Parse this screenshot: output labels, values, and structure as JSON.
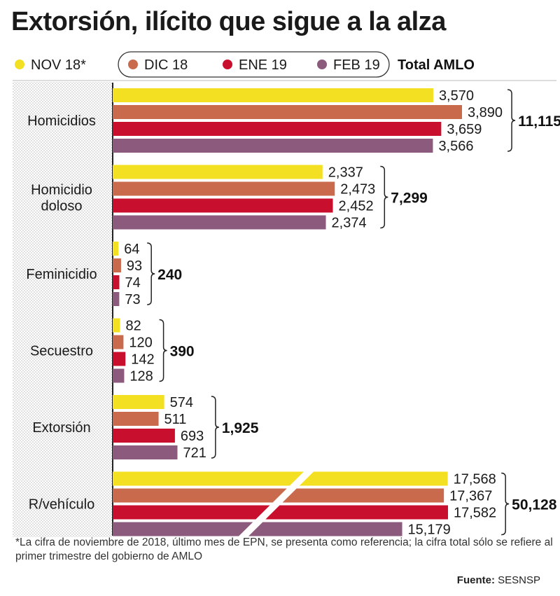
{
  "title": "Extorsión, ilícito que sigue a la alza",
  "legend": {
    "series": [
      {
        "label": "NOV 18*",
        "color": "#f4e022"
      },
      {
        "label": "DIC 18",
        "color": "#c96a4d"
      },
      {
        "label": "ENE 19",
        "color": "#c8102e"
      },
      {
        "label": "FEB 19",
        "color": "#8b5a7c"
      }
    ],
    "total_label": "Total AMLO"
  },
  "chart_data": {
    "type": "bar",
    "orientation": "horizontal",
    "title": "Extorsión, ilícito que sigue a la alza",
    "categories": [
      "Homicidios",
      "Homicidio doloso",
      "Feminicidio",
      "Secuestro",
      "Extorsión",
      "R/vehículo"
    ],
    "series": [
      {
        "name": "NOV 18*",
        "values": [
          3570,
          2337,
          64,
          82,
          574,
          17568
        ]
      },
      {
        "name": "DIC 18",
        "values": [
          3890,
          2473,
          93,
          120,
          511,
          17367
        ]
      },
      {
        "name": "ENE 19",
        "values": [
          3659,
          2452,
          74,
          142,
          693,
          17582
        ]
      },
      {
        "name": "FEB 19",
        "values": [
          3566,
          2374,
          73,
          128,
          721,
          15179
        ]
      }
    ],
    "value_labels": [
      [
        "3,570",
        "3,890",
        "3,659",
        "3,566"
      ],
      [
        "2,337",
        "2,473",
        "2,452",
        "2,374"
      ],
      [
        "64",
        "93",
        "74",
        "73"
      ],
      [
        "82",
        "120",
        "142",
        "128"
      ],
      [
        "574",
        "511",
        "693",
        "721"
      ],
      [
        "17,568",
        "17,367",
        "17,582",
        "15,179"
      ]
    ],
    "totals": [
      "11,115",
      "7,299",
      "240",
      "390",
      "1,925",
      "50,128"
    ],
    "total_values": [
      11115,
      7299,
      240,
      390,
      1925,
      50128
    ],
    "axis_break_category": "R/vehículo",
    "grid": false,
    "legend_position": "top"
  },
  "footnote": "*La cifra de noviembre de 2018, último mes de EPN, se presenta como referencia; la cifra total sólo se refiere al primer trimestre del gobierno de AMLO",
  "source_label": "Fuente:",
  "source_value": "SESNSP"
}
